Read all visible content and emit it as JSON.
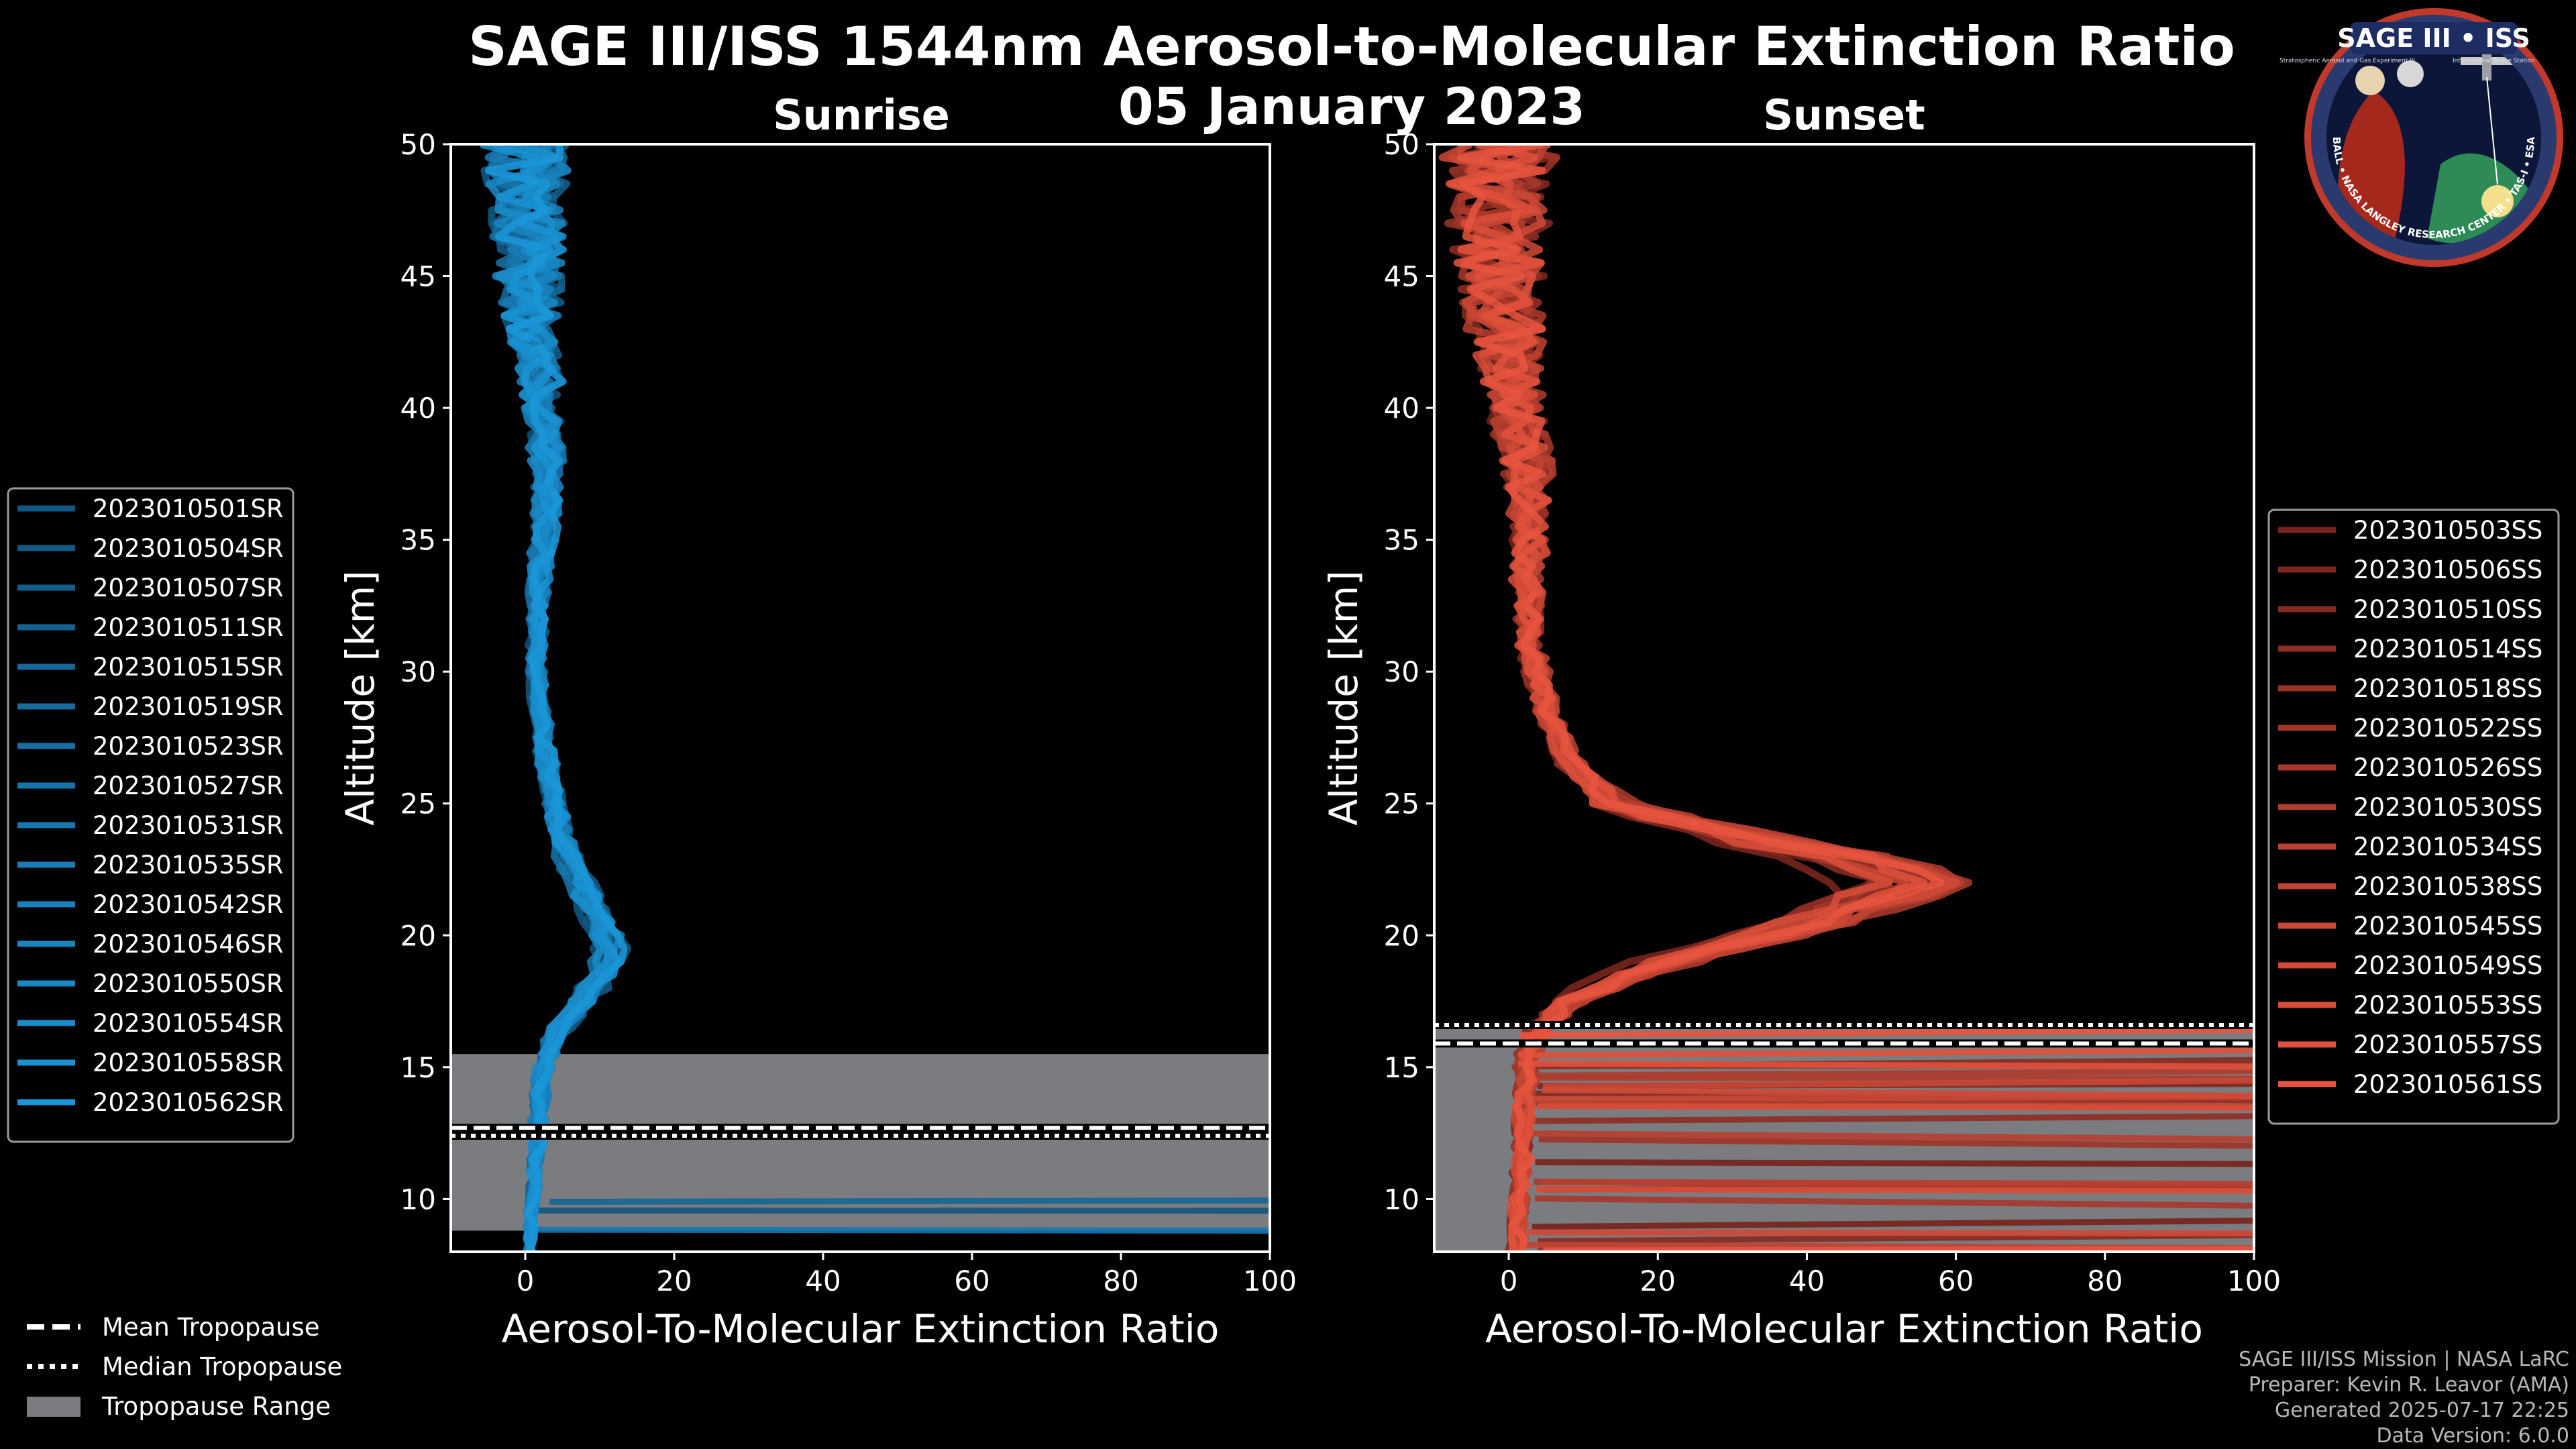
{
  "header": {
    "title": "SAGE III/ISS 1544nm Aerosol-to-Molecular Extinction Ratio",
    "date": "05 January 2023"
  },
  "logo": {
    "title": "SAGE III • ISS",
    "text_left": "Stratospheric Aerosol and Gas Experiment III",
    "text_right": "International Space Station",
    "ring_text": "BALL • NASA LANGLEY RESEARCH CENTER • TAS-I • ESA"
  },
  "colors": {
    "background": "#000000",
    "sunrise": "#1b96d8",
    "sunset": "#e8553f",
    "tropopause_range": "#7b7c80",
    "axes": "#ffffff"
  },
  "chart_data": [
    {
      "type": "line",
      "panel": "sunrise",
      "title": "Sunrise",
      "xlabel": "Aerosol-To-Molecular Extinction Ratio",
      "ylabel": "Altitude [km]",
      "xlim": [
        -10,
        100
      ],
      "ylim": [
        8,
        50
      ],
      "xticks": [
        0,
        20,
        40,
        60,
        80,
        100
      ],
      "yticks": [
        10,
        15,
        20,
        25,
        30,
        35,
        40,
        45,
        50
      ],
      "tropopause": {
        "mean": 12.7,
        "median": 12.4,
        "range": [
          8.8,
          15.5
        ]
      },
      "series": [
        {
          "name": "2023010501SR"
        },
        {
          "name": "2023010504SR"
        },
        {
          "name": "2023010507SR"
        },
        {
          "name": "2023010511SR"
        },
        {
          "name": "2023010515SR"
        },
        {
          "name": "2023010519SR"
        },
        {
          "name": "2023010523SR"
        },
        {
          "name": "2023010527SR"
        },
        {
          "name": "2023010531SR"
        },
        {
          "name": "2023010535SR"
        },
        {
          "name": "2023010542SR"
        },
        {
          "name": "2023010546SR"
        },
        {
          "name": "2023010550SR"
        },
        {
          "name": "2023010554SR"
        },
        {
          "name": "2023010558SR"
        },
        {
          "name": "2023010562SR"
        }
      ],
      "profile_median": [
        [
          0.5,
          8
        ],
        [
          1.0,
          10
        ],
        [
          1.5,
          12
        ],
        [
          2.0,
          14
        ],
        [
          2.5,
          15
        ],
        [
          3.5,
          16
        ],
        [
          6.0,
          17
        ],
        [
          9.0,
          18
        ],
        [
          11.0,
          19
        ],
        [
          11.5,
          19.6
        ],
        [
          10.0,
          20.5
        ],
        [
          8.0,
          21.5
        ],
        [
          6.5,
          22.5
        ],
        [
          5.0,
          23.5
        ],
        [
          3.8,
          25
        ],
        [
          2.6,
          27
        ],
        [
          1.8,
          29
        ],
        [
          1.5,
          31
        ],
        [
          1.8,
          33
        ],
        [
          2.5,
          35
        ],
        [
          3.0,
          37
        ],
        [
          2.8,
          39
        ],
        [
          2.0,
          41
        ],
        [
          1.0,
          43
        ],
        [
          0.5,
          45
        ],
        [
          0.2,
          47
        ],
        [
          0.0,
          50
        ]
      ],
      "noise_amplitude": [
        [
          8,
          0.5
        ],
        [
          20,
          1.5
        ],
        [
          30,
          1.0
        ],
        [
          35,
          1.5
        ],
        [
          40,
          2.5
        ],
        [
          45,
          4.5
        ],
        [
          50,
          6.0
        ]
      ]
    },
    {
      "type": "line",
      "panel": "sunset",
      "title": "Sunset",
      "xlabel": "Aerosol-To-Molecular Extinction Ratio",
      "ylabel": "Altitude [km]",
      "xlim": [
        -10,
        100
      ],
      "ylim": [
        8,
        50
      ],
      "xticks": [
        0,
        20,
        40,
        60,
        80,
        100
      ],
      "yticks": [
        10,
        15,
        20,
        25,
        30,
        35,
        40,
        45,
        50
      ],
      "tropopause": {
        "mean": 15.9,
        "median": 16.6,
        "range": [
          8.0,
          16.7
        ]
      },
      "series": [
        {
          "name": "2023010503SS"
        },
        {
          "name": "2023010506SS"
        },
        {
          "name": "2023010510SS"
        },
        {
          "name": "2023010514SS"
        },
        {
          "name": "2023010518SS"
        },
        {
          "name": "2023010522SS"
        },
        {
          "name": "2023010526SS"
        },
        {
          "name": "2023010530SS"
        },
        {
          "name": "2023010534SS"
        },
        {
          "name": "2023010538SS"
        },
        {
          "name": "2023010545SS"
        },
        {
          "name": "2023010549SS"
        },
        {
          "name": "2023010553SS"
        },
        {
          "name": "2023010557SS"
        },
        {
          "name": "2023010561SS"
        }
      ],
      "profile_median": [
        [
          1.0,
          8
        ],
        [
          1.5,
          10
        ],
        [
          2.0,
          12
        ],
        [
          2.0,
          14
        ],
        [
          2.5,
          15.5
        ],
        [
          4.0,
          16.5
        ],
        [
          8.0,
          17.5
        ],
        [
          16.0,
          18.5
        ],
        [
          27.0,
          19.5
        ],
        [
          40.0,
          20.5
        ],
        [
          50.0,
          21.5
        ],
        [
          54.0,
          22.0
        ],
        [
          48.0,
          22.8
        ],
        [
          35.0,
          23.5
        ],
        [
          22.0,
          24.3
        ],
        [
          14.0,
          25
        ],
        [
          8.0,
          26.5
        ],
        [
          5.0,
          28.5
        ],
        [
          2.8,
          31
        ],
        [
          2.5,
          33
        ],
        [
          3.0,
          35
        ],
        [
          2.5,
          38
        ],
        [
          1.0,
          40
        ],
        [
          -0.5,
          43
        ],
        [
          -1.5,
          46
        ],
        [
          -1.0,
          50
        ]
      ],
      "noise_amplitude": [
        [
          8,
          1.0
        ],
        [
          17,
          1.5
        ],
        [
          22,
          3.5
        ],
        [
          27,
          1.0
        ],
        [
          30,
          1.5
        ],
        [
          35,
          2.5
        ],
        [
          40,
          4.0
        ],
        [
          45,
          6.0
        ],
        [
          50,
          8.0
        ]
      ]
    }
  ],
  "tropopause_legend": {
    "mean": "Mean Tropopause",
    "median": "Median Tropopause",
    "range": "Tropopause Range"
  },
  "credits": {
    "line1": "SAGE III/ISS Mission | NASA LaRC",
    "line2": "Preparer: Kevin R. Leavor (AMA)",
    "line3": "Generated 2025-07-17 22:25",
    "line4": "Data Version: 6.0.0"
  }
}
